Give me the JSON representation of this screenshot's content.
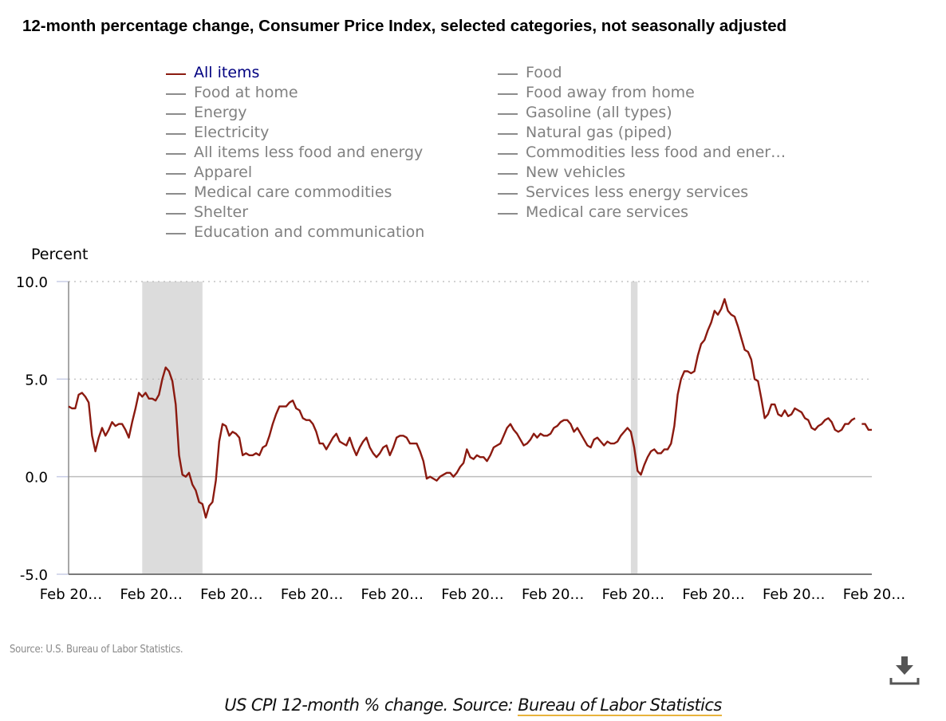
{
  "title": "12-month percentage change, Consumer Price Index, selected categories, not seasonally adjusted",
  "legend": {
    "column1": [
      {
        "label": "All items",
        "active": true
      },
      {
        "label": "Food at home",
        "active": false
      },
      {
        "label": "Energy",
        "active": false
      },
      {
        "label": "Electricity",
        "active": false
      },
      {
        "label": "All items less food and energy",
        "active": false
      },
      {
        "label": "Apparel",
        "active": false
      },
      {
        "label": "Medical care commodities",
        "active": false
      },
      {
        "label": "Shelter",
        "active": false
      },
      {
        "label": "Education and communication",
        "active": false
      }
    ],
    "column2": [
      {
        "label": "Food",
        "active": false
      },
      {
        "label": "Food away from home",
        "active": false
      },
      {
        "label": "Gasoline (all types)",
        "active": false
      },
      {
        "label": "Natural gas (piped)",
        "active": false
      },
      {
        "label": "Commodities less food and ener…",
        "active": false
      },
      {
        "label": "New vehicles",
        "active": false
      },
      {
        "label": "Services less energy services",
        "active": false
      },
      {
        "label": "Medical care services",
        "active": false
      }
    ]
  },
  "source_note": "Source: U.S. Bureau of Labor Statistics.",
  "download_icon": "download-icon",
  "caption": {
    "prefix": "US CPI 12-month % change. Source: ",
    "link_text": "Bureau of Labor Statistics"
  },
  "colors": {
    "series": "#8b1a10",
    "recession_shade": "#dcdcdc",
    "legend_active_text": "#000080",
    "legend_inactive": "#808080",
    "caption_link_underline": "#e8b33c"
  },
  "chart_data": {
    "type": "line",
    "title": "12-month percentage change, Consumer Price Index, selected categories, not seasonally adjusted",
    "ylabel": "Percent",
    "xlabel": "",
    "ylim": [
      -5.0,
      10.0
    ],
    "yticks": [
      "10.0",
      "5.0",
      "0.0",
      "-5.0"
    ],
    "ytick_values": [
      10,
      5,
      0,
      -5
    ],
    "xtick_labels": [
      "Feb 20…",
      "Feb 20…",
      "Feb 20…",
      "Feb 20…",
      "Feb 20…",
      "Feb 20…",
      "Feb 20…",
      "Feb 20…",
      "Feb 20…",
      "Feb 20…",
      "Feb 20…"
    ],
    "x_start": "Feb 2006",
    "x_frequency": "monthly",
    "x_span_months": 240,
    "grid": "horizontal dotted",
    "recession_bands": [
      {
        "start_month_index": 22,
        "end_month_index": 40
      },
      {
        "start_month_index": 168,
        "end_month_index": 170
      }
    ],
    "series": [
      {
        "name": "All items",
        "values": [
          3.6,
          3.5,
          3.5,
          4.2,
          4.3,
          4.1,
          3.8,
          2.1,
          1.3,
          2.0,
          2.5,
          2.1,
          2.4,
          2.8,
          2.6,
          2.7,
          2.7,
          2.4,
          2.0,
          2.8,
          3.5,
          4.3,
          4.1,
          4.3,
          4.0,
          4.0,
          3.9,
          4.2,
          5.0,
          5.6,
          5.4,
          4.9,
          3.7,
          1.1,
          0.1,
          0.0,
          0.2,
          -0.4,
          -0.7,
          -1.3,
          -1.4,
          -2.1,
          -1.5,
          -1.3,
          -0.2,
          1.8,
          2.7,
          2.6,
          2.1,
          2.3,
          2.2,
          2.0,
          1.1,
          1.2,
          1.1,
          1.1,
          1.2,
          1.1,
          1.5,
          1.6,
          2.1,
          2.7,
          3.2,
          3.6,
          3.6,
          3.6,
          3.8,
          3.9,
          3.5,
          3.4,
          3.0,
          2.9,
          2.9,
          2.7,
          2.3,
          1.7,
          1.7,
          1.4,
          1.7,
          2.0,
          2.2,
          1.8,
          1.7,
          1.6,
          2.0,
          1.5,
          1.1,
          1.5,
          1.8,
          2.0,
          1.5,
          1.2,
          1.0,
          1.2,
          1.5,
          1.6,
          1.1,
          1.5,
          2.0,
          2.1,
          2.1,
          2.0,
          1.7,
          1.7,
          1.7,
          1.3,
          0.8,
          -0.1,
          0.0,
          -0.1,
          -0.2,
          0.0,
          0.1,
          0.2,
          0.2,
          0.0,
          0.2,
          0.5,
          0.7,
          1.4,
          1.0,
          0.9,
          1.1,
          1.0,
          1.0,
          0.8,
          1.1,
          1.5,
          1.6,
          1.7,
          2.1,
          2.5,
          2.7,
          2.4,
          2.2,
          1.9,
          1.6,
          1.7,
          1.9,
          2.2,
          2.0,
          2.2,
          2.1,
          2.1,
          2.2,
          2.5,
          2.6,
          2.8,
          2.9,
          2.9,
          2.7,
          2.3,
          2.5,
          2.2,
          1.9,
          1.6,
          1.5,
          1.9,
          2.0,
          1.8,
          1.6,
          1.8,
          1.7,
          1.7,
          1.8,
          2.1,
          2.3,
          2.5,
          2.3,
          1.5,
          0.3,
          0.1,
          0.6,
          1.0,
          1.3,
          1.4,
          1.2,
          1.2,
          1.4,
          1.4,
          1.7,
          2.6,
          4.2,
          5.0,
          5.4,
          5.4,
          5.3,
          5.4,
          6.2,
          6.8,
          7.0,
          7.5,
          7.9,
          8.5,
          8.3,
          8.6,
          9.1,
          8.5,
          8.3,
          8.2,
          7.7,
          7.1,
          6.5,
          6.4,
          6.0,
          5.0,
          4.9,
          4.0,
          3.0,
          3.2,
          3.7,
          3.7,
          3.2,
          3.1,
          3.4,
          3.1,
          3.2,
          3.5,
          3.4,
          3.3,
          3.0,
          2.9,
          2.5,
          2.4,
          2.6,
          2.7,
          2.9,
          3.0,
          2.8,
          2.4,
          2.3,
          2.4,
          2.7,
          2.7,
          2.9,
          3.0,
          null,
          2.7,
          2.7,
          2.4,
          2.4
        ]
      }
    ]
  }
}
